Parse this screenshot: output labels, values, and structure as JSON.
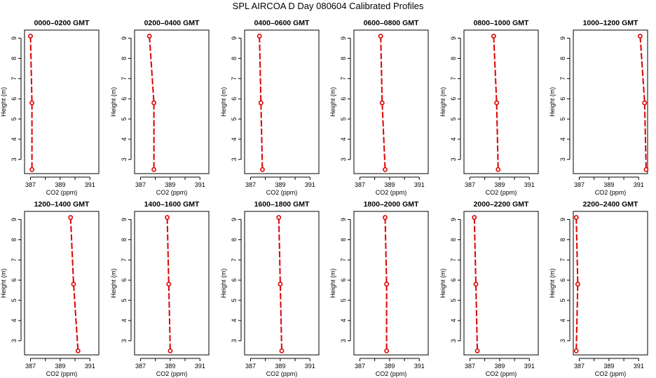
{
  "figure_title": "SPL AIRCOA D  Day 080604  Calibrated Profiles",
  "colors": {
    "series": "#dd0000",
    "axis": "#000000"
  },
  "chart_data": [
    {
      "type": "line",
      "title": "0000–0200 GMT",
      "xlabel": "CO2 (ppm)",
      "ylabel": "Height (m)",
      "xlim": [
        386.6,
        391.6
      ],
      "ylim": [
        2.3,
        9.4
      ],
      "xticks": [
        387,
        389,
        391
      ],
      "yticks": [
        3,
        4,
        5,
        6,
        7,
        8,
        9
      ],
      "points": [
        {
          "x": 387.0,
          "y": 9.1
        },
        {
          "x": 387.1,
          "y": 5.8
        },
        {
          "x": 387.1,
          "y": 2.5
        }
      ]
    },
    {
      "type": "line",
      "title": "0200–0400 GMT",
      "xlabel": "CO2 (ppm)",
      "ylabel": "Height (m)",
      "xlim": [
        386.6,
        391.6
      ],
      "ylim": [
        2.3,
        9.4
      ],
      "xticks": [
        387,
        389,
        391
      ],
      "yticks": [
        3,
        4,
        5,
        6,
        7,
        8,
        9
      ],
      "points": [
        {
          "x": 387.6,
          "y": 9.1
        },
        {
          "x": 387.9,
          "y": 5.8
        },
        {
          "x": 387.9,
          "y": 2.5
        }
      ]
    },
    {
      "type": "line",
      "title": "0400–0600 GMT",
      "xlabel": "CO2 (ppm)",
      "ylabel": "Height (m)",
      "xlim": [
        386.6,
        391.6
      ],
      "ylim": [
        2.3,
        9.4
      ],
      "xticks": [
        387,
        389,
        391
      ],
      "yticks": [
        3,
        4,
        5,
        6,
        7,
        8,
        9
      ],
      "points": [
        {
          "x": 387.6,
          "y": 9.1
        },
        {
          "x": 387.7,
          "y": 5.8
        },
        {
          "x": 387.8,
          "y": 2.5
        }
      ]
    },
    {
      "type": "line",
      "title": "0600–0800 GMT",
      "xlabel": "CO2 (ppm)",
      "ylabel": "Height (m)",
      "xlim": [
        386.6,
        391.6
      ],
      "ylim": [
        2.3,
        9.4
      ],
      "xticks": [
        387,
        389,
        391
      ],
      "yticks": [
        3,
        4,
        5,
        6,
        7,
        8,
        9
      ],
      "points": [
        {
          "x": 388.4,
          "y": 9.1
        },
        {
          "x": 388.5,
          "y": 5.8
        },
        {
          "x": 388.7,
          "y": 2.5
        }
      ]
    },
    {
      "type": "line",
      "title": "0800–1000 GMT",
      "xlabel": "CO2 (ppm)",
      "ylabel": "Height (m)",
      "xlim": [
        386.6,
        391.6
      ],
      "ylim": [
        2.3,
        9.4
      ],
      "xticks": [
        387,
        389,
        391
      ],
      "yticks": [
        3,
        4,
        5,
        6,
        7,
        8,
        9
      ],
      "points": [
        {
          "x": 388.6,
          "y": 9.1
        },
        {
          "x": 388.8,
          "y": 5.8
        },
        {
          "x": 388.9,
          "y": 2.5
        }
      ]
    },
    {
      "type": "line",
      "title": "1000–1200 GMT",
      "xlabel": "CO2 (ppm)",
      "ylabel": "Height (m)",
      "xlim": [
        386.6,
        391.6
      ],
      "ylim": [
        2.3,
        9.4
      ],
      "xticks": [
        387,
        389,
        391
      ],
      "yticks": [
        3,
        4,
        5,
        6,
        7,
        8,
        9
      ],
      "points": [
        {
          "x": 391.1,
          "y": 9.1
        },
        {
          "x": 391.4,
          "y": 5.8
        },
        {
          "x": 391.5,
          "y": 2.5
        }
      ]
    },
    {
      "type": "line",
      "title": "1200–1400 GMT",
      "xlabel": "CO2 (ppm)",
      "ylabel": "Height (m)",
      "xlim": [
        386.6,
        391.6
      ],
      "ylim": [
        2.3,
        9.4
      ],
      "xticks": [
        387,
        389,
        391
      ],
      "yticks": [
        3,
        4,
        5,
        6,
        7,
        8,
        9
      ],
      "points": [
        {
          "x": 389.7,
          "y": 9.1
        },
        {
          "x": 389.9,
          "y": 5.8
        },
        {
          "x": 390.2,
          "y": 2.5
        }
      ]
    },
    {
      "type": "line",
      "title": "1400–1600 GMT",
      "xlabel": "CO2 (ppm)",
      "ylabel": "Height (m)",
      "xlim": [
        386.6,
        391.6
      ],
      "ylim": [
        2.3,
        9.4
      ],
      "xticks": [
        387,
        389,
        391
      ],
      "yticks": [
        3,
        4,
        5,
        6,
        7,
        8,
        9
      ],
      "points": [
        {
          "x": 388.8,
          "y": 9.1
        },
        {
          "x": 388.9,
          "y": 5.8
        },
        {
          "x": 389.0,
          "y": 2.5
        }
      ]
    },
    {
      "type": "line",
      "title": "1600–1800 GMT",
      "xlabel": "CO2 (ppm)",
      "ylabel": "Height (m)",
      "xlim": [
        386.6,
        391.6
      ],
      "ylim": [
        2.3,
        9.4
      ],
      "xticks": [
        387,
        389,
        391
      ],
      "yticks": [
        3,
        4,
        5,
        6,
        7,
        8,
        9
      ],
      "points": [
        {
          "x": 388.9,
          "y": 9.1
        },
        {
          "x": 389.0,
          "y": 5.8
        },
        {
          "x": 389.1,
          "y": 2.5
        }
      ]
    },
    {
      "type": "line",
      "title": "1800–2000 GMT",
      "xlabel": "CO2 (ppm)",
      "ylabel": "Height (m)",
      "xlim": [
        386.6,
        391.6
      ],
      "ylim": [
        2.3,
        9.4
      ],
      "xticks": [
        387,
        389,
        391
      ],
      "yticks": [
        3,
        4,
        5,
        6,
        7,
        8,
        9
      ],
      "points": [
        {
          "x": 388.7,
          "y": 9.1
        },
        {
          "x": 388.8,
          "y": 5.8
        },
        {
          "x": 388.8,
          "y": 2.5
        }
      ]
    },
    {
      "type": "line",
      "title": "2000–2200 GMT",
      "xlabel": "CO2 (ppm)",
      "ylabel": "Height (m)",
      "xlim": [
        386.6,
        391.6
      ],
      "ylim": [
        2.3,
        9.4
      ],
      "xticks": [
        387,
        389,
        391
      ],
      "yticks": [
        3,
        4,
        5,
        6,
        7,
        8,
        9
      ],
      "points": [
        {
          "x": 387.3,
          "y": 9.1
        },
        {
          "x": 387.4,
          "y": 5.8
        },
        {
          "x": 387.5,
          "y": 2.5
        }
      ]
    },
    {
      "type": "line",
      "title": "2200–2400 GMT",
      "xlabel": "CO2 (ppm)",
      "ylabel": "Height (m)",
      "xlim": [
        386.6,
        391.6
      ],
      "ylim": [
        2.3,
        9.4
      ],
      "xticks": [
        387,
        389,
        391
      ],
      "yticks": [
        3,
        4,
        5,
        6,
        7,
        8,
        9
      ],
      "points": [
        {
          "x": 386.8,
          "y": 9.1
        },
        {
          "x": 386.9,
          "y": 5.8
        },
        {
          "x": 386.8,
          "y": 2.5
        }
      ]
    }
  ]
}
